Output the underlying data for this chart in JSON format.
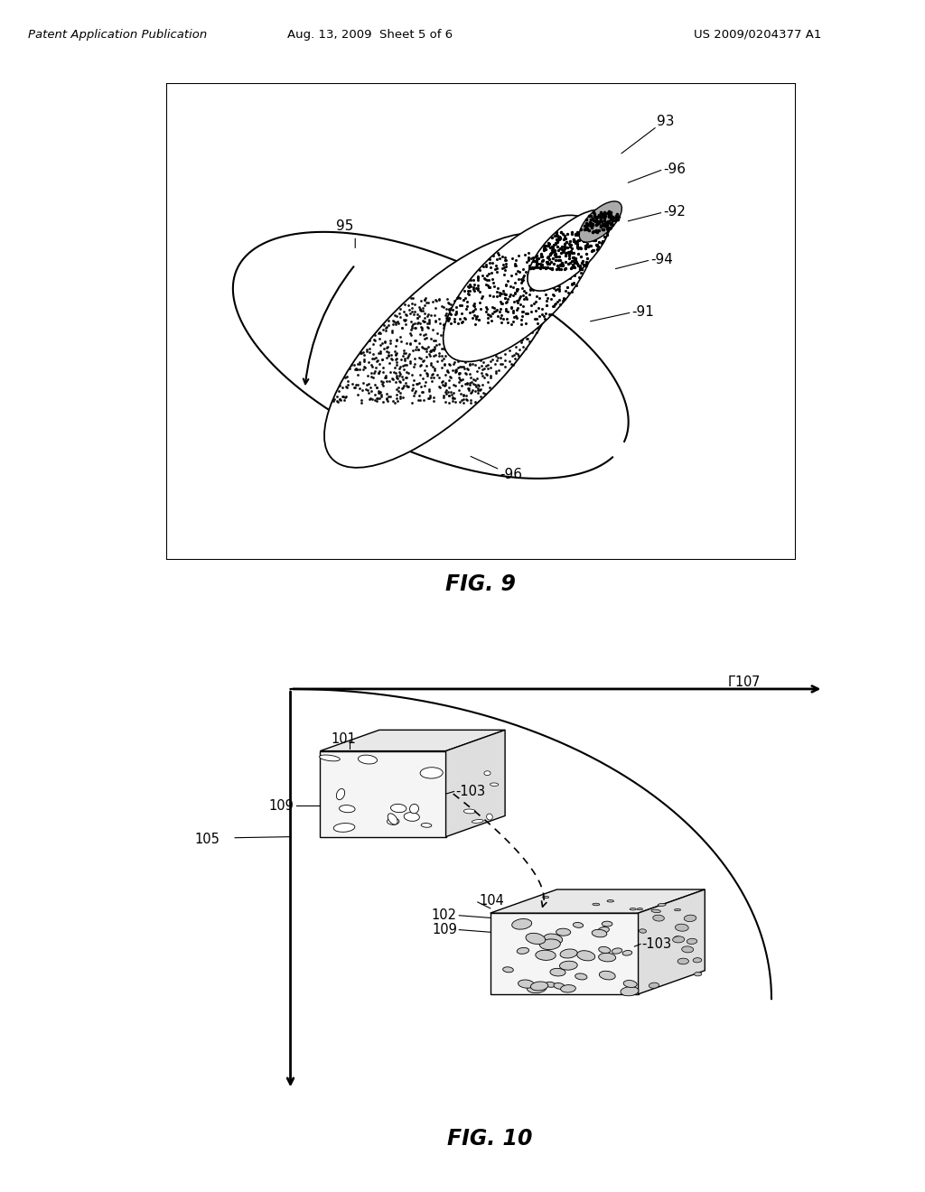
{
  "bg_color": "#ffffff",
  "header_left": "Patent Application Publication",
  "header_mid": "Aug. 13, 2009  Sheet 5 of 6",
  "header_right": "US 2009/0204377 A1",
  "fig9_title": "FIG. 9",
  "fig10_title": "FIG. 10"
}
